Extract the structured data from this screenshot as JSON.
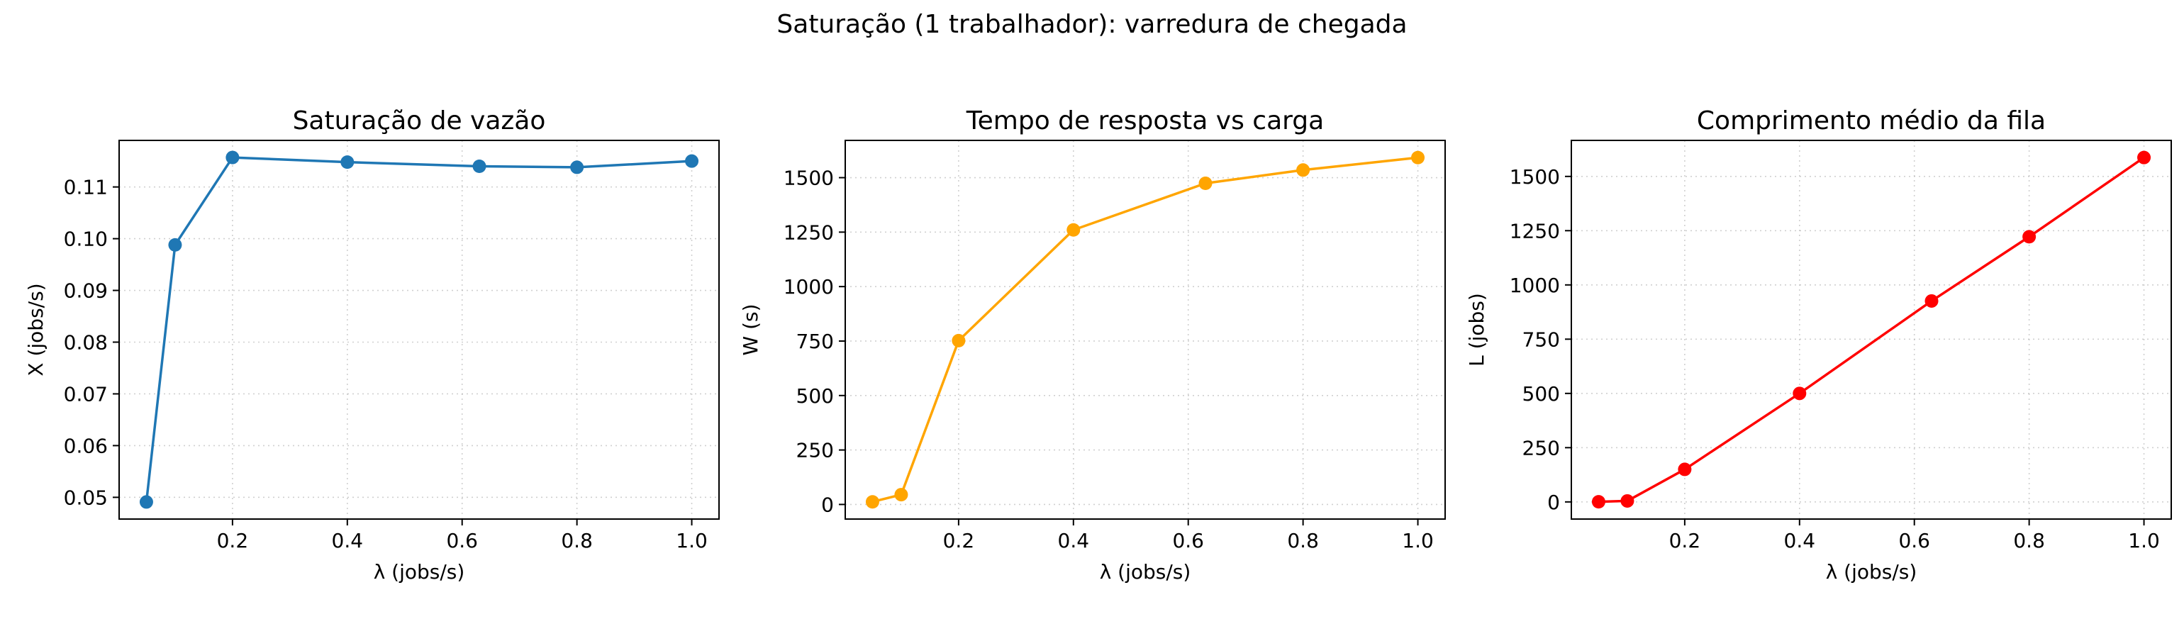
{
  "figure": {
    "suptitle": "Saturação (1 trabalhador): varredura de chegada"
  },
  "chart_data": [
    {
      "type": "line",
      "title": "Saturação de vazão",
      "xlabel": "λ (jobs/s)",
      "ylabel": "X (jobs/s)",
      "color": "#1f77b4",
      "marker": "circle",
      "grid": true,
      "x": [
        0.05,
        0.1,
        0.2,
        0.4,
        0.63,
        0.8,
        1.0
      ],
      "y": [
        0.0491,
        0.0988,
        0.1157,
        0.1148,
        0.114,
        0.1138,
        0.115
      ],
      "xlim": [
        0.0025,
        1.0475
      ],
      "ylim": [
        0.0458,
        0.119
      ],
      "xticks": [
        0.2,
        0.4,
        0.6,
        0.8,
        1.0
      ],
      "xticklabels": [
        "0.2",
        "0.4",
        "0.6",
        "0.8",
        "1.0"
      ],
      "yticks": [
        0.05,
        0.06,
        0.07,
        0.08,
        0.09,
        0.1,
        0.11
      ],
      "yticklabels": [
        "0.05",
        "0.06",
        "0.07",
        "0.08",
        "0.09",
        "0.10",
        "0.11"
      ]
    },
    {
      "type": "line",
      "title": "Tempo de resposta vs carga",
      "xlabel": "λ (jobs/s)",
      "ylabel": "W (s)",
      "color": "#ffa500",
      "marker": "circle",
      "grid": true,
      "x": [
        0.05,
        0.1,
        0.2,
        0.4,
        0.63,
        0.8,
        1.0
      ],
      "y": [
        12,
        45,
        752,
        1260,
        1474,
        1535,
        1592
      ],
      "xlim": [
        0.0025,
        1.0475
      ],
      "ylim": [
        -67,
        1671
      ],
      "xticks": [
        0.2,
        0.4,
        0.6,
        0.8,
        1.0
      ],
      "xticklabels": [
        "0.2",
        "0.4",
        "0.6",
        "0.8",
        "1.0"
      ],
      "yticks": [
        0,
        250,
        500,
        750,
        1000,
        1250,
        1500
      ],
      "yticklabels": [
        "0",
        "250",
        "500",
        "750",
        "1000",
        "1250",
        "1500"
      ]
    },
    {
      "type": "line",
      "title": "Comprimento médio da fila",
      "xlabel": "λ (jobs/s)",
      "ylabel": "L (jobs)",
      "color": "#ff0000",
      "marker": "circle",
      "grid": true,
      "x": [
        0.05,
        0.1,
        0.2,
        0.4,
        0.63,
        0.8,
        1.0
      ],
      "y": [
        0.6,
        4.5,
        150,
        500,
        926,
        1222,
        1587
      ],
      "xlim": [
        0.0025,
        1.0475
      ],
      "ylim": [
        -79,
        1666
      ],
      "xticks": [
        0.2,
        0.4,
        0.6,
        0.8,
        1.0
      ],
      "xticklabels": [
        "0.2",
        "0.4",
        "0.6",
        "0.8",
        "1.0"
      ],
      "yticks": [
        0,
        250,
        500,
        750,
        1000,
        1250,
        1500
      ],
      "yticklabels": [
        "0",
        "250",
        "500",
        "750",
        "1000",
        "1250",
        "1500"
      ]
    }
  ]
}
